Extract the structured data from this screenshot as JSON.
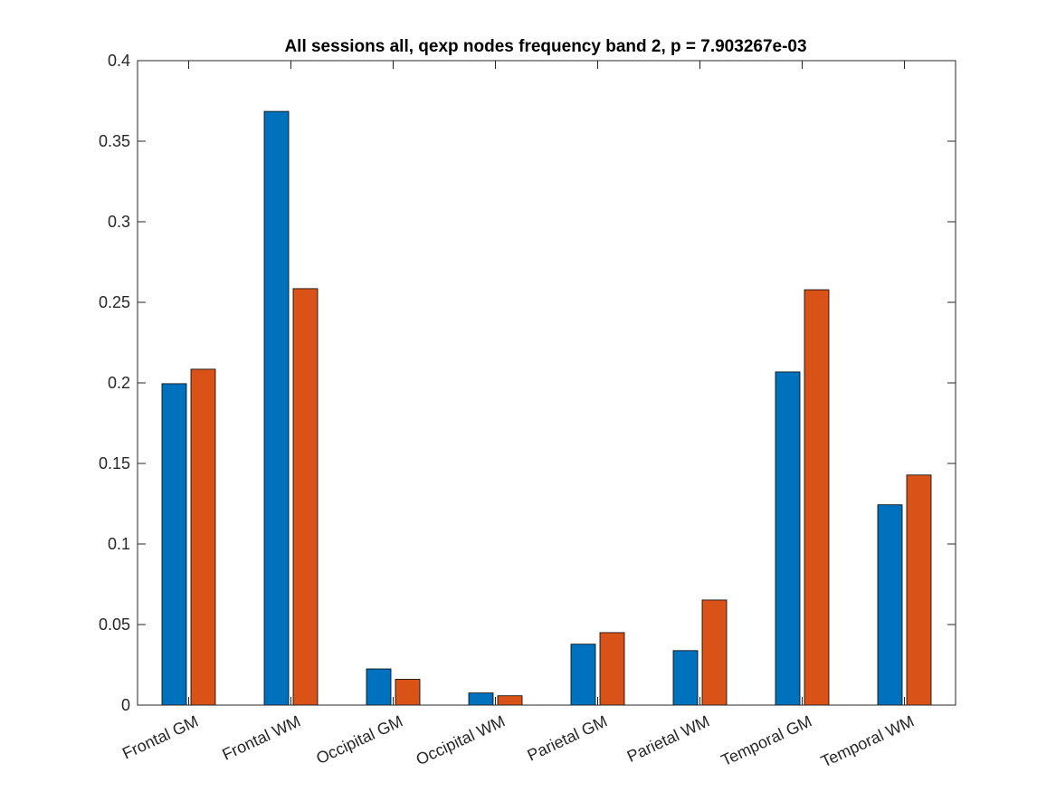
{
  "chart_data": {
    "type": "bar",
    "title": "All sessions all, qexp nodes frequency band 2, p = 7.903267e-03",
    "xlabel": "",
    "ylabel": "",
    "ylim": [
      0,
      0.4
    ],
    "yticks": [
      0,
      0.05,
      0.1,
      0.15,
      0.2,
      0.25,
      0.3,
      0.35,
      0.4
    ],
    "ytick_labels": [
      "0",
      "0.05",
      "0.1",
      "0.15",
      "0.2",
      "0.25",
      "0.3",
      "0.35",
      "0.4"
    ],
    "categories": [
      "Frontal GM",
      "Frontal WM",
      "Occipital GM",
      "Occipital WM",
      "Parietal GM",
      "Parietal WM",
      "Temporal GM",
      "Temporal WM"
    ],
    "series": [
      {
        "name": "series-1",
        "color": "#0072BD",
        "values": [
          0.1995,
          0.3685,
          0.0225,
          0.0075,
          0.0378,
          0.0338,
          0.2068,
          0.1243
        ]
      },
      {
        "name": "series-2",
        "color": "#D95319",
        "values": [
          0.2085,
          0.2585,
          0.016,
          0.0058,
          0.045,
          0.0652,
          0.2578,
          0.1428
        ]
      }
    ],
    "grid": false,
    "box": true
  }
}
